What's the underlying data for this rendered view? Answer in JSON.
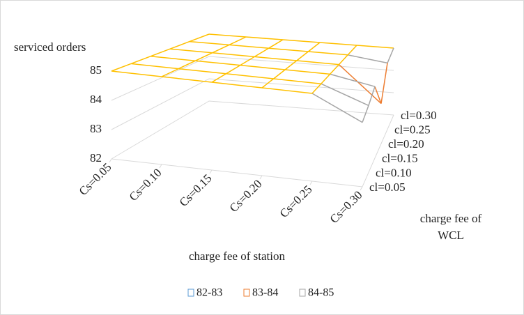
{
  "chart_data": {
    "type": "surface",
    "z_title": "serviced orders",
    "x_title": "charge fee of station",
    "depth_title": [
      "charge fee of",
      "WCL"
    ],
    "x": [
      "Cs=0.05",
      "Cs=0.10",
      "Cs=0.15",
      "Cs=0.20",
      "Cs=0.25",
      "Cs=0.30"
    ],
    "series": [
      {
        "name": "cl=0.05",
        "values": [
          85,
          85,
          85,
          85,
          85,
          84.2
        ]
      },
      {
        "name": "cl=0.10",
        "values": [
          85,
          85,
          85,
          85,
          85,
          84.4
        ]
      },
      {
        "name": "cl=0.15",
        "values": [
          85,
          85,
          85,
          85,
          85,
          84.7
        ]
      },
      {
        "name": "cl=0.20",
        "values": [
          85,
          85,
          85,
          85,
          85,
          83.6
        ]
      },
      {
        "name": "cl=0.25",
        "values": [
          85,
          85,
          85,
          85,
          85,
          84.8
        ]
      },
      {
        "name": "cl=0.30",
        "values": [
          85,
          85,
          85,
          85,
          85,
          85
        ]
      }
    ],
    "zlim": [
      82,
      85
    ],
    "zticks": [
      82,
      83,
      84,
      85
    ],
    "bands": [
      {
        "name": "82-83",
        "range": [
          82,
          83
        ],
        "color": "#5b9bd5"
      },
      {
        "name": "83-84",
        "range": [
          83,
          84
        ],
        "color": "#ed7d31"
      },
      {
        "name": "84-85",
        "range": [
          84,
          85
        ],
        "color": "#a5a5a5"
      }
    ],
    "top_color": "#ffc000",
    "grid": true
  }
}
